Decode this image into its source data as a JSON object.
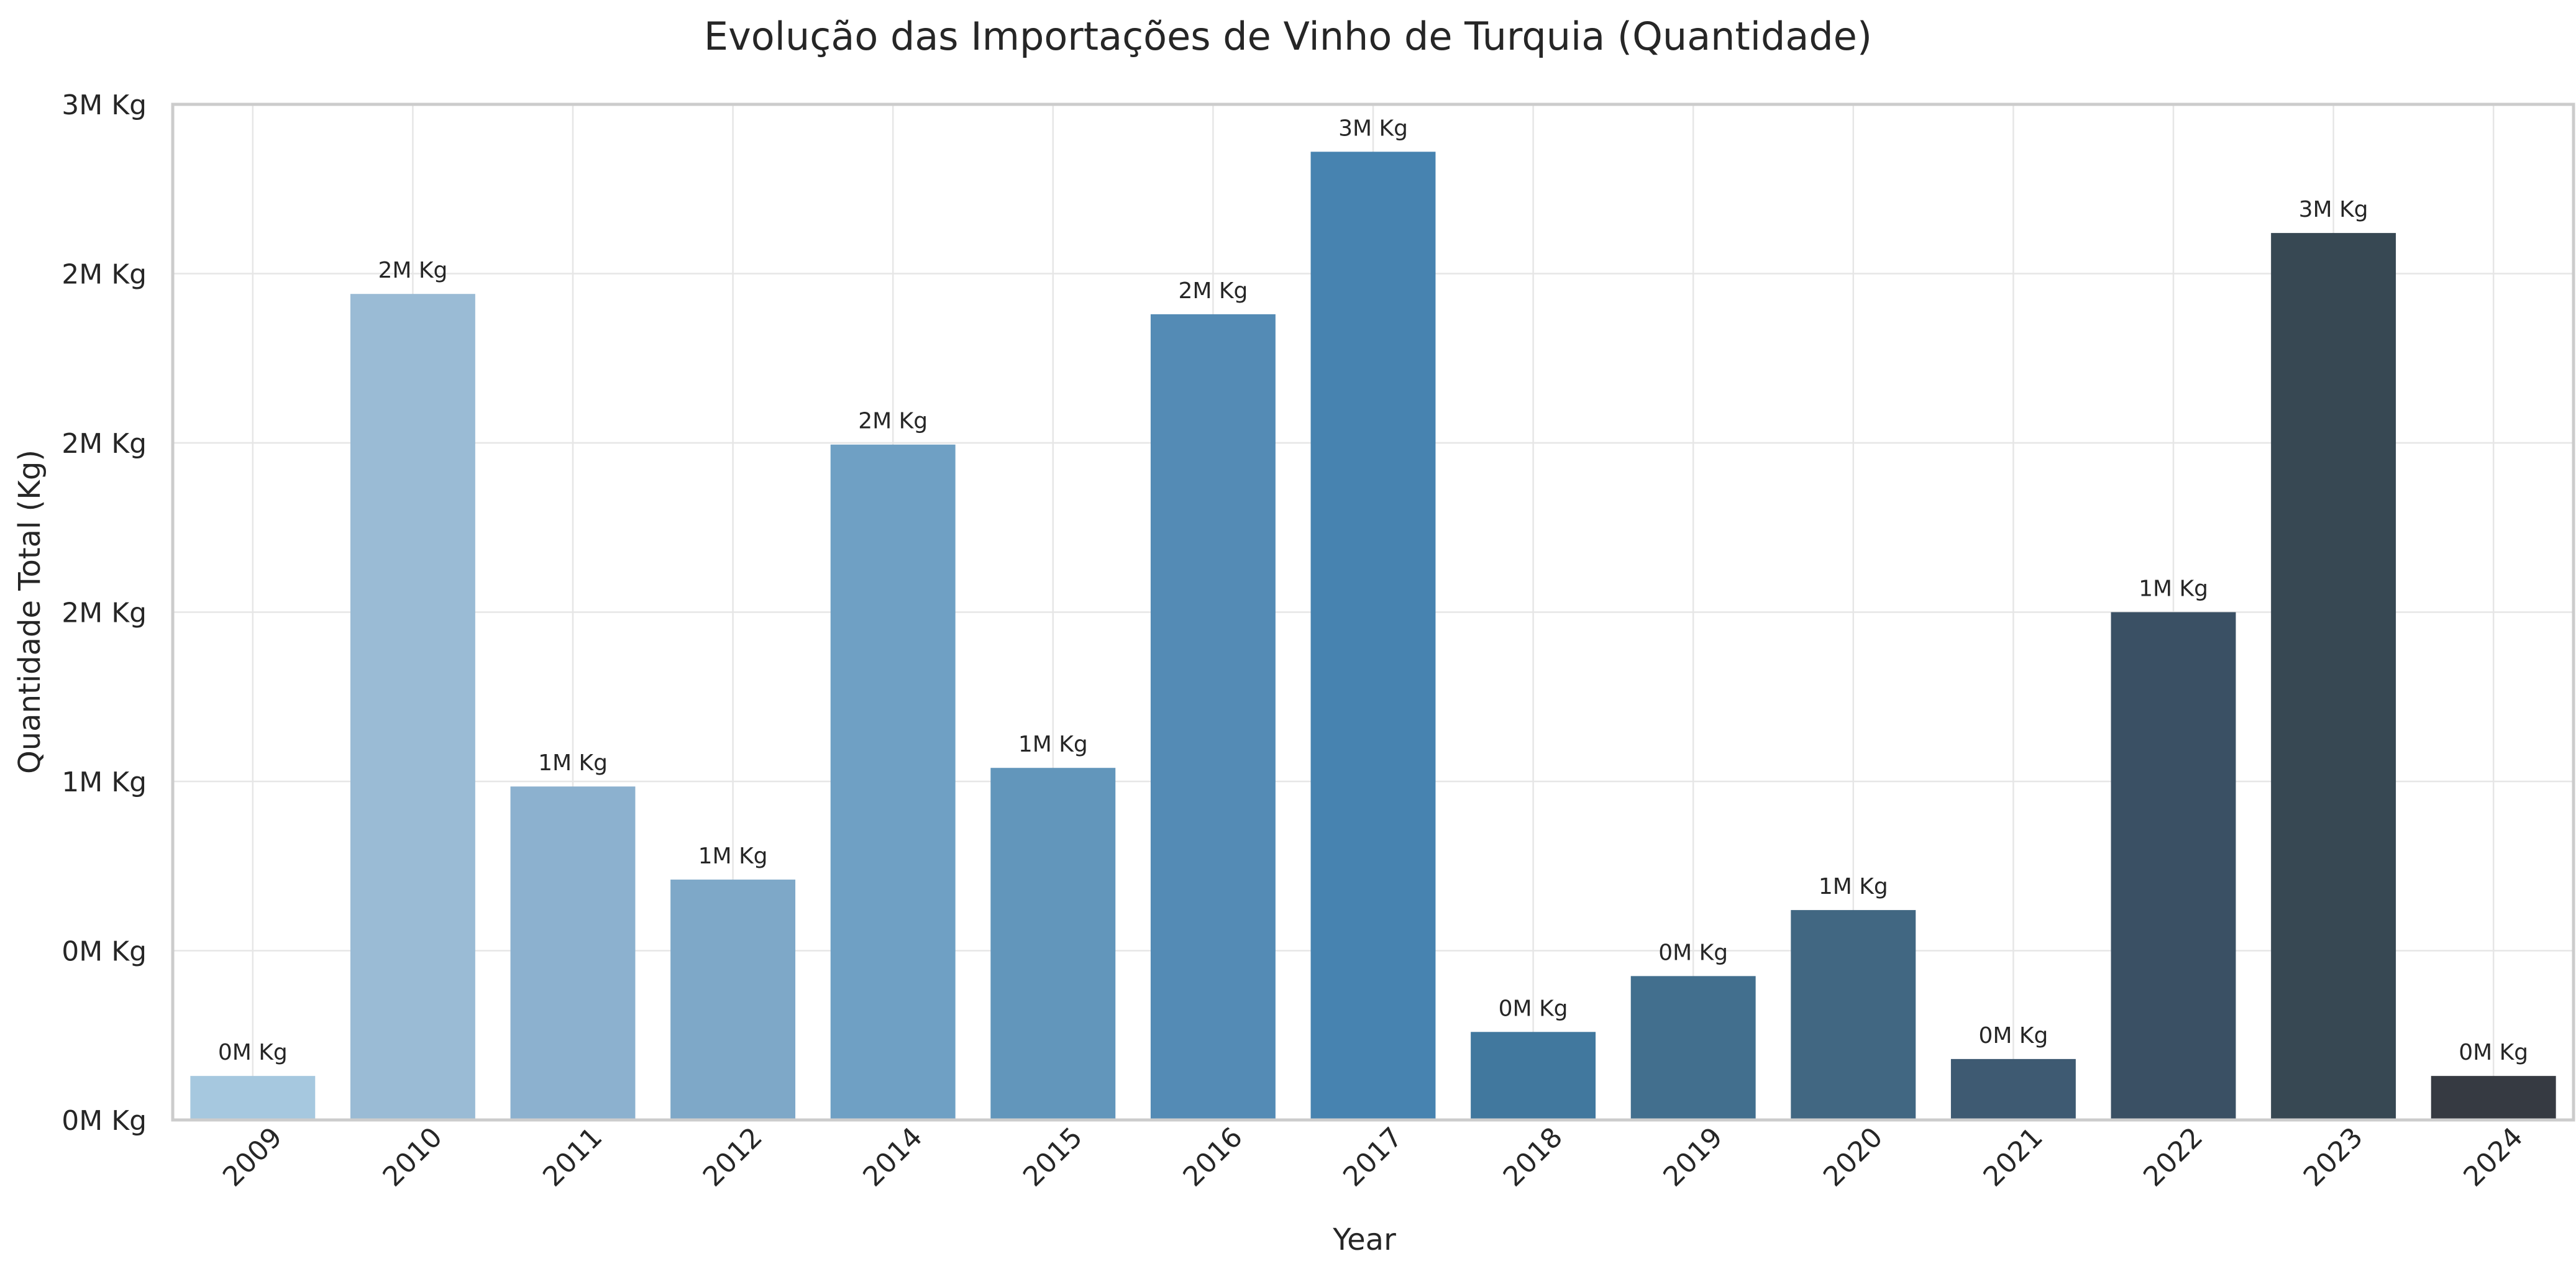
{
  "chart_data": {
    "type": "bar",
    "title": "Evolução das Importações de Vinho de Turquia (Quantidade)",
    "xlabel": "Year",
    "ylabel": "Quantidade Total (Kg)",
    "categories": [
      "2009",
      "2010",
      "2011",
      "2012",
      "2014",
      "2015",
      "2016",
      "2017",
      "2018",
      "2019",
      "2020",
      "2021",
      "2022",
      "2023",
      "2024"
    ],
    "values": [
      130000,
      2440000,
      985000,
      710000,
      1995000,
      1040000,
      2380000,
      2860000,
      260000,
      425000,
      620000,
      180000,
      1500000,
      2620000,
      130000
    ],
    "data_labels": [
      "0M Kg",
      "2M Kg",
      "1M Kg",
      "1M Kg",
      "2M Kg",
      "1M Kg",
      "2M Kg",
      "3M Kg",
      "0M Kg",
      "0M Kg",
      "1M Kg",
      "0M Kg",
      "1M Kg",
      "3M Kg",
      "0M Kg"
    ],
    "bar_colors": [
      "#a6c8df",
      "#9abbd5",
      "#8cb1cf",
      "#7ea8c8",
      "#6fa0c4",
      "#6296bb",
      "#548bb5",
      "#4783b0",
      "#41789e",
      "#426f8e",
      "#416782",
      "#3e5a72",
      "#3a5064",
      "#374853",
      "#363a42"
    ],
    "yticks": [
      0,
      500000,
      1000000,
      1500000,
      2000000,
      2500000,
      3000000
    ],
    "ytick_labels": [
      "0M Kg",
      "0M Kg",
      "1M Kg",
      "2M Kg",
      "2M Kg",
      "2M Kg",
      "3M Kg"
    ],
    "ylim": [
      0,
      3000000
    ],
    "grid": true,
    "legend": "none"
  }
}
